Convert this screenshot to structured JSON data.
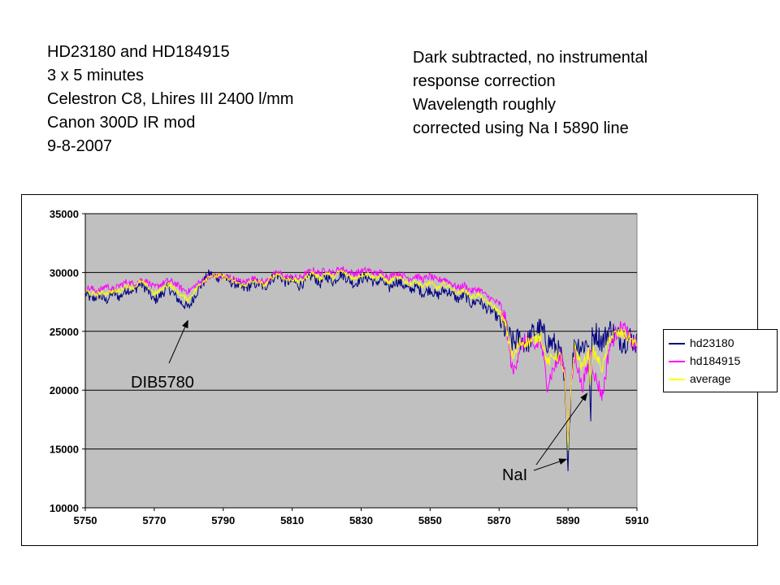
{
  "notes": {
    "left": [
      "HD23180 and HD184915",
      "3 x 5 minutes",
      "Celestron C8, Lhires III 2400 l/mm",
      "Canon 300D IR mod",
      "9-8-2007"
    ],
    "right": [
      "Dark subtracted, no instrumental",
      "response correction",
      "Wavelength roughly",
      "corrected using Na I 5890 line"
    ]
  },
  "colors": {
    "plot_background": "#c0c0c0",
    "gridline": "#000000",
    "hd23180": "#000080",
    "hd184915": "#ff00ff",
    "average": "#ffff00"
  },
  "chart_data": {
    "type": "line",
    "title": "",
    "xlabel": "",
    "ylabel": "",
    "xlim": [
      5750,
      5910
    ],
    "ylim": [
      10000,
      35000
    ],
    "x_ticks": [
      5750,
      5770,
      5790,
      5810,
      5830,
      5850,
      5870,
      5890,
      5910
    ],
    "y_ticks": [
      10000,
      15000,
      20000,
      25000,
      30000,
      35000
    ],
    "x_tick_labels": [
      "5750",
      "5770",
      "5790",
      "5810",
      "5830",
      "5850",
      "5870",
      "5890",
      "5910"
    ],
    "y_tick_labels": [
      "10000",
      "15000",
      "20000",
      "25000",
      "30000",
      "35000"
    ],
    "grid": "horizontal major gridlines",
    "legend_position": "right",
    "x": [
      5750,
      5752,
      5754,
      5756,
      5758,
      5760,
      5762,
      5764,
      5766,
      5768,
      5770,
      5772,
      5774,
      5776,
      5778,
      5780,
      5782,
      5784,
      5786,
      5788,
      5790,
      5792,
      5794,
      5796,
      5798,
      5800,
      5802,
      5804,
      5806,
      5808,
      5810,
      5812,
      5814,
      5816,
      5818,
      5820,
      5822,
      5824,
      5826,
      5828,
      5830,
      5832,
      5834,
      5836,
      5838,
      5840,
      5842,
      5844,
      5846,
      5848,
      5850,
      5852,
      5854,
      5856,
      5858,
      5860,
      5862,
      5864,
      5866,
      5868,
      5870,
      5872,
      5874,
      5876,
      5878,
      5880,
      5882,
      5884,
      5886,
      5888,
      5889,
      5890,
      5891,
      5892,
      5894,
      5896,
      5896.5,
      5897,
      5898,
      5900,
      5902,
      5904,
      5906,
      5908,
      5910
    ],
    "series": [
      {
        "name": "hd23180",
        "values": [
          28200,
          27700,
          28100,
          27600,
          28300,
          27900,
          28600,
          28400,
          29100,
          28500,
          27600,
          28100,
          28800,
          28000,
          27400,
          27000,
          28200,
          29100,
          29900,
          29600,
          29700,
          29200,
          29000,
          28600,
          28900,
          29100,
          28700,
          29500,
          29800,
          29200,
          29300,
          28900,
          29300,
          29800,
          29000,
          29700,
          29200,
          29900,
          29500,
          29000,
          29500,
          29600,
          29100,
          29400,
          28600,
          29300,
          29000,
          28500,
          28800,
          28200,
          28600,
          28000,
          28500,
          28300,
          27700,
          28100,
          27300,
          27700,
          27000,
          26700,
          26000,
          25000,
          24000,
          24400,
          23900,
          24900,
          25200,
          24100,
          23900,
          22800,
          20200,
          14200,
          21500,
          24100,
          23700,
          24200,
          16500,
          24400,
          24900,
          24100,
          25200,
          24700,
          24100,
          24500,
          23900
        ]
      },
      {
        "name": "hd184915",
        "values": [
          28700,
          28600,
          28400,
          28900,
          28500,
          28900,
          29200,
          29000,
          29400,
          29200,
          28700,
          29000,
          29300,
          29100,
          28600,
          28400,
          28900,
          29300,
          29600,
          29800,
          29600,
          29600,
          29300,
          29100,
          29500,
          29400,
          29100,
          29700,
          30000,
          29600,
          29600,
          29500,
          29900,
          30200,
          29900,
          30300,
          29900,
          30400,
          30100,
          29900,
          30100,
          30200,
          29900,
          30000,
          29600,
          29900,
          29800,
          29500,
          29700,
          29400,
          29700,
          29300,
          29500,
          29100,
          28700,
          28900,
          28400,
          28600,
          28100,
          27700,
          27300,
          25800,
          21300,
          23700,
          24300,
          23500,
          24200,
          20500,
          22000,
          22800,
          21800,
          15800,
          20700,
          23200,
          20200,
          22200,
          23900,
          22300,
          21000,
          19500,
          23700,
          24900,
          25400,
          24300,
          23600
        ]
      },
      {
        "name": "average",
        "values": [
          28450,
          28150,
          28250,
          28250,
          28400,
          28400,
          28900,
          28700,
          29250,
          28850,
          28150,
          28550,
          29050,
          28550,
          28000,
          27700,
          28550,
          29200,
          29750,
          29700,
          29650,
          29400,
          29150,
          28850,
          29200,
          29250,
          28900,
          29600,
          29900,
          29400,
          29450,
          29200,
          29600,
          30000,
          29450,
          30000,
          29550,
          30150,
          29800,
          29450,
          29800,
          29900,
          29500,
          29700,
          29100,
          29600,
          29400,
          29000,
          29250,
          28800,
          29150,
          28650,
          29000,
          28700,
          28200,
          28500,
          27850,
          28150,
          27550,
          27200,
          26650,
          25400,
          22650,
          24050,
          24100,
          24200,
          24700,
          22300,
          22950,
          22800,
          21000,
          15000,
          21100,
          23650,
          21950,
          23200,
          20200,
          23350,
          22950,
          21800,
          24450,
          24800,
          24750,
          24400,
          23750
        ]
      }
    ],
    "annotations": [
      {
        "text": "DIB5780",
        "x": 5780,
        "y": 26200
      },
      {
        "text": "NaI",
        "x": 5890,
        "y": 14200
      }
    ]
  }
}
